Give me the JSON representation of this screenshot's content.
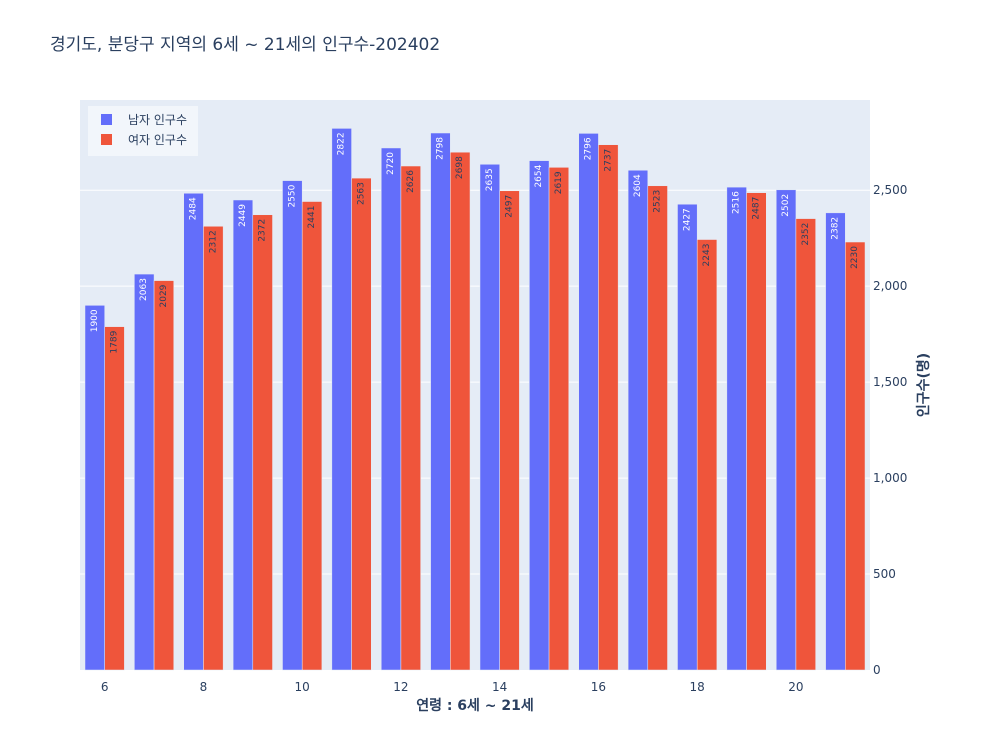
{
  "chart_data": {
    "type": "bar",
    "title": "경기도,  분당구 지역의 6세 ~ 21세의 인구수-202402",
    "xlabel": "연령 : 6세 ~ 21세",
    "ylabel": "인구수(명)",
    "y_axis_side": "right",
    "x": [
      6,
      7,
      8,
      9,
      10,
      11,
      12,
      13,
      14,
      15,
      16,
      17,
      18,
      19,
      20,
      21
    ],
    "x_tick_values": [
      6,
      8,
      10,
      12,
      14,
      16,
      18,
      20
    ],
    "x_tick_labels": [
      "6",
      "8",
      "10",
      "12",
      "14",
      "16",
      "18",
      "20"
    ],
    "ylim": [
      0,
      2970
    ],
    "y_tick_values": [
      0,
      500,
      1000,
      1500,
      2000,
      2500
    ],
    "y_tick_labels": [
      "0",
      "500",
      "1,000",
      "1,500",
      "2,000",
      "2,500"
    ],
    "grid": true,
    "legend_position": "top-left",
    "series": [
      {
        "name": "남자 인구수",
        "color": "#636efa",
        "label_color": "#ffffff",
        "values": [
          1900,
          2063,
          2484,
          2449,
          2550,
          2822,
          2720,
          2798,
          2635,
          2654,
          2796,
          2604,
          2427,
          2516,
          2502,
          2382
        ]
      },
      {
        "name": "여자 인구수",
        "color": "#ef553b",
        "label_color": "#2a3f5f",
        "values": [
          1789,
          2029,
          2312,
          2372,
          2441,
          2563,
          2626,
          2698,
          2497,
          2619,
          2737,
          2523,
          2243,
          2487,
          2352,
          2230
        ]
      }
    ]
  },
  "colors": {
    "plot_background": "#e5ecf6",
    "gridline": "#ffffff",
    "text": "#2a3f5f"
  }
}
